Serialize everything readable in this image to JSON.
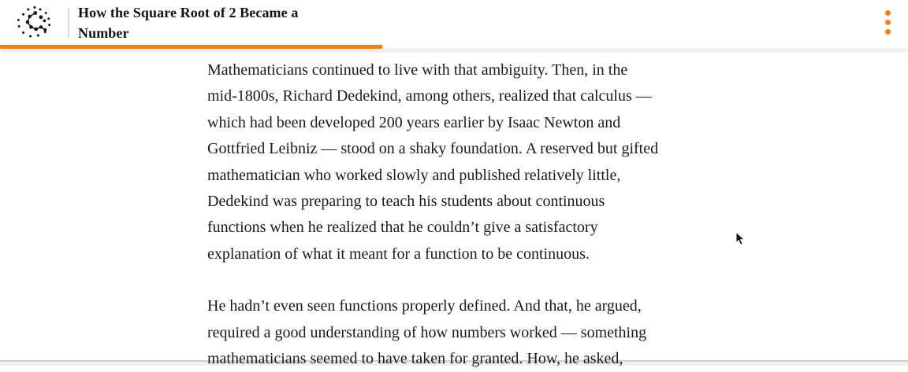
{
  "header": {
    "title": "How the Square Root of 2 Became a Number",
    "logo_icon": "quanta-constellation-logo-icon",
    "menu_icon": "kebab-menu-icon",
    "progress_percent": 42.1
  },
  "article": {
    "paragraphs": [
      {
        "lines": [
          "Mathematicians continued to live with that ambiguity. Then, in the",
          "mid-1800s, Richard Dedekind, among others, realized that calculus —",
          "which had been developed 200 years earlier by Isaac Newton and",
          "Gottfried Leibniz — stood on a shaky foundation. A reserved but gifted",
          "mathematician who worked slowly and published relatively little,",
          "Dedekind was preparing to teach his students about continuous",
          "functions when he realized that he couldn’t give a satisfactory",
          "explanation of what it meant for a function to be continuous."
        ]
      },
      {
        "lines": [
          "He hadn’t even seen functions properly defined. And that, he argued,",
          "required a good understanding of how numbers worked — something",
          "mathematicians seemed to have taken for granted. How, he asked,"
        ]
      }
    ]
  },
  "cursor": {
    "icon": "arrow-pointer-icon"
  },
  "colors": {
    "accent": "#f78112",
    "title_text": "#121212",
    "body_text": "#1a1a1a",
    "bottom_strip": "#f0f0f0",
    "header_background": "#ffffff"
  }
}
